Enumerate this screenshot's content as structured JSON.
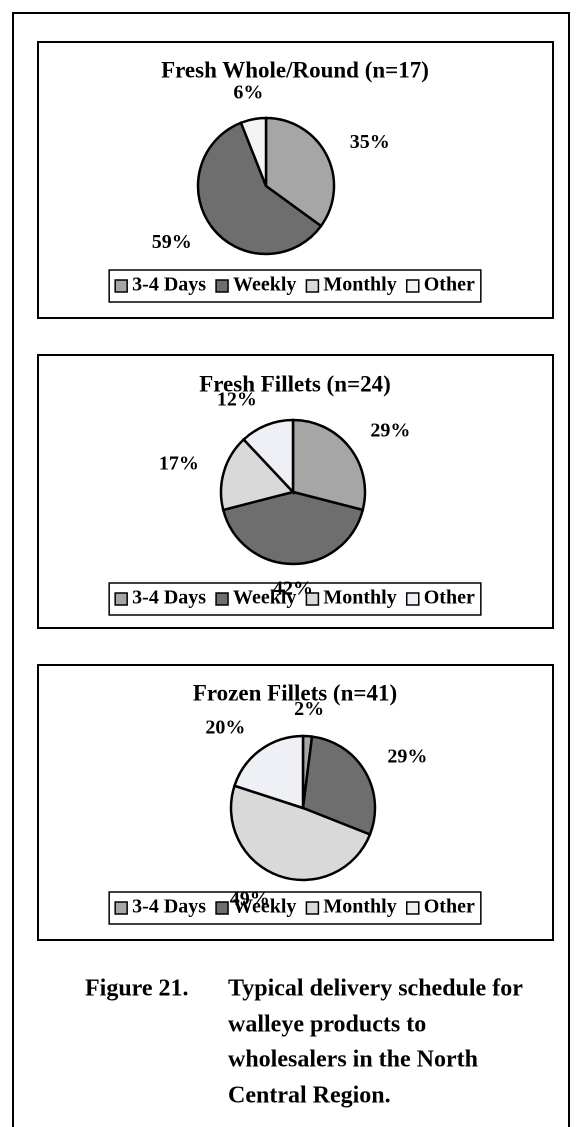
{
  "chart_data": [
    {
      "type": "pie",
      "title": "Fresh Whole/Round (n=17)",
      "categories": [
        "3-4 Days",
        "Weekly",
        "Monthly",
        "Other"
      ],
      "values": [
        35,
        59,
        null,
        6
      ],
      "value_labels": [
        "35%",
        "59%",
        null,
        "6%"
      ],
      "colors": [
        "#a6a6a6",
        "#6e6e6e",
        "#d9d9d9",
        "#f4f4f4"
      ]
    },
    {
      "type": "pie",
      "title": "Fresh Fillets (n=24)",
      "categories": [
        "3-4 Days",
        "Weekly",
        "Monthly",
        "Other"
      ],
      "values": [
        29,
        42,
        17,
        12
      ],
      "value_labels": [
        "29%",
        "42%",
        "17%",
        "12%"
      ],
      "colors": [
        "#a6a6a6",
        "#6e6e6e",
        "#d9d9d9",
        "#eef0f5"
      ]
    },
    {
      "type": "pie",
      "title": "Frozen Fillets (n=41)",
      "categories": [
        "3-4 Days",
        "Weekly",
        "Monthly",
        "Other"
      ],
      "values": [
        2,
        29,
        49,
        20
      ],
      "value_labels": [
        "2%",
        "29%",
        "49%",
        "20%"
      ],
      "colors": [
        "#a6a6a6",
        "#6e6e6e",
        "#d9d9d9",
        "#eef0f5"
      ]
    }
  ],
  "caption": {
    "label": "Figure 21.",
    "lines": [
      "Typical delivery schedule for",
      "walleye products to",
      "wholesalers in the North",
      "Central Region."
    ]
  }
}
